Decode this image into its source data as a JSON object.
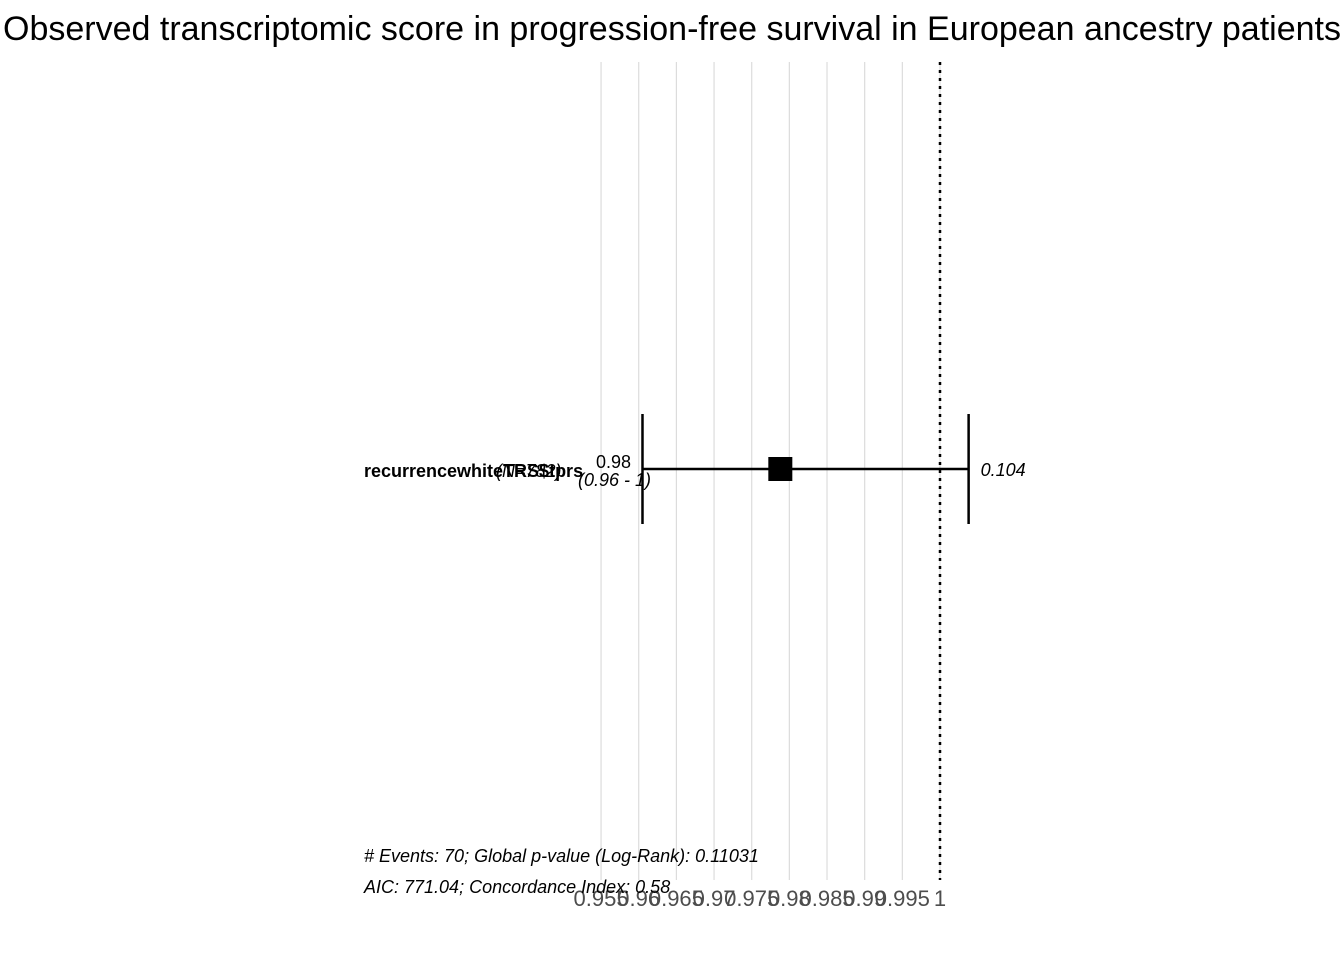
{
  "chart_data": {
    "type": "forest",
    "title": "Observed transcriptomic score in progression-free survival in European ancestry patients",
    "xlim": [
      0.953,
      1.0
    ],
    "x_ticks": [
      0.955,
      0.96,
      0.965,
      0.97,
      0.975,
      0.98,
      0.985,
      0.99,
      0.995,
      1
    ],
    "x_tick_labels": [
      "0.955",
      "0.96",
      "0.965",
      "0.97",
      "0.975",
      "0.98",
      "0.985",
      "0.99",
      "0.995",
      "1"
    ],
    "reference_line": 1,
    "rows": [
      {
        "variable": "recurrencewhiteTRS$tprs",
        "n_label": "(N=782)",
        "hr": 0.9788,
        "ci_low": 0.9605,
        "ci_high": 1.0038,
        "hr_label": "0.98",
        "ci_label": "(0.96 - 1)",
        "p_label": "0.104"
      }
    ],
    "footer_line1": "# Events: 70; Global p-value (Log-Rank): 0.11031",
    "footer_line2": "AIC: 771.04; Concordance Index: 0.58"
  }
}
